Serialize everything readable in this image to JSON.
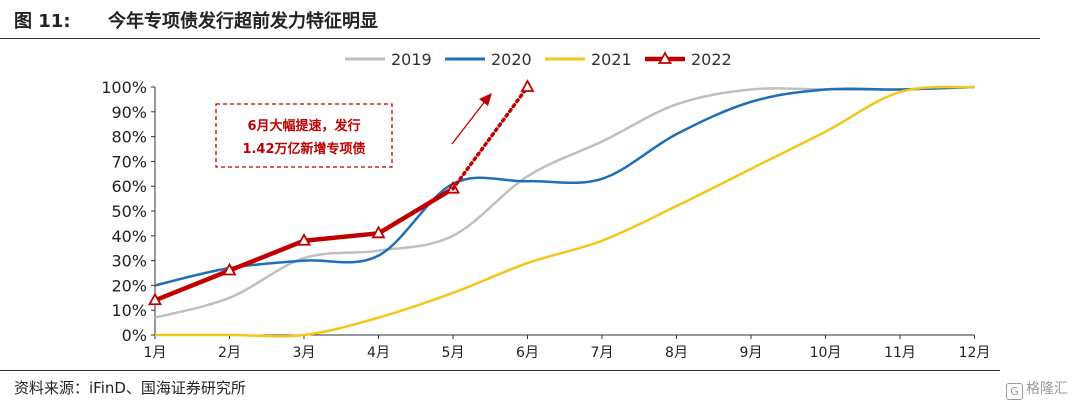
{
  "figure": {
    "label": "图 11:",
    "title": "今年专项债发行超前发力特征明显",
    "source": "资料来源：iFinD、国海证券研究所",
    "watermark": "格隆汇"
  },
  "chart_data": {
    "type": "line",
    "categories": [
      "1月",
      "2月",
      "3月",
      "4月",
      "5月",
      "6月",
      "7月",
      "8月",
      "9月",
      "10月",
      "11月",
      "12月"
    ],
    "ylim": [
      0,
      100
    ],
    "y_ticks": [
      "0%",
      "10%",
      "20%",
      "30%",
      "40%",
      "50%",
      "60%",
      "70%",
      "80%",
      "90%",
      "100%"
    ],
    "legend_position": "top",
    "series": [
      {
        "name": "2019",
        "color": "#bfbfbf",
        "values": [
          7,
          15,
          31,
          34,
          40,
          64,
          78,
          93,
          99,
          99,
          99,
          100
        ]
      },
      {
        "name": "2020",
        "color": "#1f6fb5",
        "values": [
          20,
          27,
          30,
          32,
          61,
          62,
          63,
          81,
          94,
          99,
          99,
          100
        ]
      },
      {
        "name": "2021",
        "color": "#f5c518",
        "values": [
          0,
          0,
          0,
          7,
          17,
          29,
          38,
          52,
          67,
          82,
          98,
          100
        ]
      },
      {
        "name": "2022",
        "color": "#c00000",
        "values": [
          14,
          26,
          38,
          41,
          59,
          null,
          null,
          null,
          null,
          null,
          null,
          null
        ],
        "marker": "triangle"
      }
    ],
    "projection": {
      "series": "2022",
      "x": "6月",
      "y": 100,
      "style": "dotted"
    },
    "annotation": {
      "lines": [
        "6月大幅提速，发行",
        "1.42万亿新增专项债"
      ],
      "color": "#c00000"
    }
  }
}
